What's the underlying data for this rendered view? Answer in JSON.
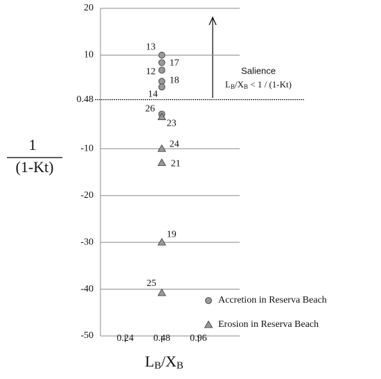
{
  "chart_data": {
    "type": "scatter",
    "x_label": [
      "L",
      "B",
      "/X",
      "B"
    ],
    "y_label": [
      "1",
      "(1-Kt)"
    ],
    "annotation": {
      "title": "Salience",
      "text": [
        "L",
        "B",
        "/X",
        "B",
        " < 1 / (1-Kt)"
      ]
    },
    "xscale": "log",
    "xlim": [
      0.15,
      2.1
    ],
    "xticks": [
      0.24,
      0.48,
      0.96
    ],
    "ylim": [
      -50,
      20
    ],
    "yticks": [
      20,
      10,
      0.48,
      -10,
      -20,
      -30,
      -40,
      -50
    ],
    "reference_line": 0.48,
    "grid": true,
    "legend": "bottom-right",
    "series": [
      {
        "name": "Accretion in Reserva Beach",
        "marker": "circle",
        "color": "#999999",
        "x": [
          0.48,
          0.48,
          0.48,
          0.48,
          0.48,
          0.48
        ],
        "values": [
          10,
          8.4,
          6.8,
          4.4,
          3.2,
          -2.6
        ],
        "labels": [
          "13",
          "17",
          "12",
          "18",
          "14",
          "26"
        ]
      },
      {
        "name": "Erosion in Reserva Beach",
        "marker": "triangle",
        "color": "#999999",
        "x": [
          0.48,
          0.48,
          0.48,
          0.48,
          0.48
        ],
        "values": [
          -3.2,
          -10,
          -13,
          -30,
          -40.8
        ],
        "labels": [
          "23",
          "24",
          "21",
          "19",
          "25"
        ]
      }
    ]
  }
}
